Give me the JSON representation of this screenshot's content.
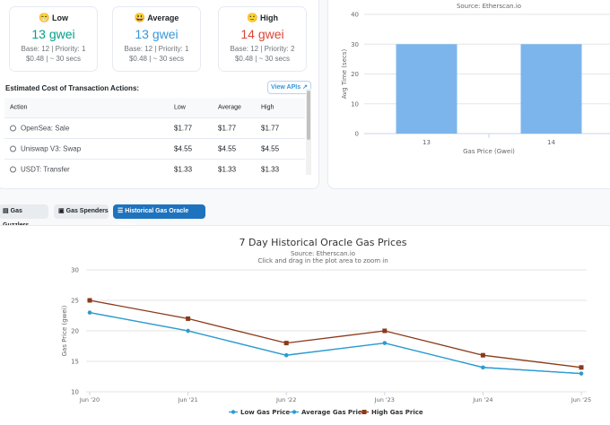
{
  "tiers": [
    {
      "emoji": "😁",
      "name": "Low",
      "price": "13 gwei",
      "base": "Base: 12 | Priority: 1",
      "cost": "$0.48 | ~ 30 secs"
    },
    {
      "emoji": "😃",
      "name": "Average",
      "price": "13 gwei",
      "base": "Base: 12 | Priority: 1",
      "cost": "$0.48 | ~ 30 secs"
    },
    {
      "emoji": "🙂",
      "name": "High",
      "price": "14 gwei",
      "base": "Base: 12 | Priority: 2",
      "cost": "$0.48 | ~ 30 secs"
    }
  ],
  "estimate": {
    "title": "Estimated Cost of Transaction Actions:",
    "view_api": "View APIs",
    "columns": [
      "Action",
      "Low",
      "Average",
      "High"
    ],
    "rows": [
      {
        "action": "OpenSea: Sale",
        "low": "$1.77",
        "avg": "$1.77",
        "high": "$1.77"
      },
      {
        "action": "Uniswap V3: Swap",
        "low": "$4.55",
        "avg": "$4.55",
        "high": "$4.55"
      },
      {
        "action": "USDT: Transfer",
        "low": "$1.33",
        "avg": "$1.33",
        "high": "$1.33"
      }
    ]
  },
  "tabs": [
    {
      "label": "Gas Guzzlers",
      "icon": "flame-icon"
    },
    {
      "label": "Gas Spenders",
      "icon": "wallet-icon"
    },
    {
      "label": "Historical Gas Oracle Prices",
      "icon": "list-icon"
    }
  ],
  "colors": {
    "low": "#3498db",
    "avg": "#3498db",
    "high": "#de4437",
    "accent": "#1e73be",
    "bar": "#7cb5ec",
    "lowLine": "#2b9bd1",
    "highLine": "#8b3a1a"
  },
  "chart_data": [
    {
      "type": "bar",
      "title": "",
      "subtitle": "Source: Etherscan.io",
      "categories": [
        "13",
        "14"
      ],
      "values": [
        30,
        30
      ],
      "xlabel": "Gas Price (Gwei)",
      "ylabel": "Avg Time (secs)",
      "ylim": [
        0,
        40
      ],
      "yticks": [
        "0",
        "10",
        "20",
        "30",
        "40"
      ]
    },
    {
      "type": "line",
      "title": "7 Day Historical Oracle Gas Prices",
      "subtitle": "Source: Etherscan.io",
      "subtitle2": "Click and drag in the plot area to zoom in",
      "ylabel": "Gas Price (gwei)",
      "xlabel": "",
      "categories": [
        "Jun '20",
        "Jun '21",
        "Jun '22",
        "Jun '23",
        "Jun '24",
        "Jun '25"
      ],
      "ylim": [
        10,
        30
      ],
      "yticks": [
        "10",
        "15",
        "20",
        "25",
        "30"
      ],
      "series": [
        {
          "name": "Low Gas Price",
          "x": [
            0,
            1,
            2,
            3,
            4,
            5
          ],
          "values": [
            23,
            20,
            16,
            18,
            14,
            13
          ]
        },
        {
          "name": "Average Gas Price",
          "x": [
            0,
            1,
            2,
            3,
            4,
            5
          ],
          "values": [
            23,
            20,
            16,
            18,
            14,
            13
          ]
        },
        {
          "name": "High Gas Price",
          "x": [
            0,
            1,
            2,
            3,
            4,
            5
          ],
          "values": [
            25,
            22,
            18,
            20,
            16,
            14
          ]
        }
      ]
    }
  ]
}
